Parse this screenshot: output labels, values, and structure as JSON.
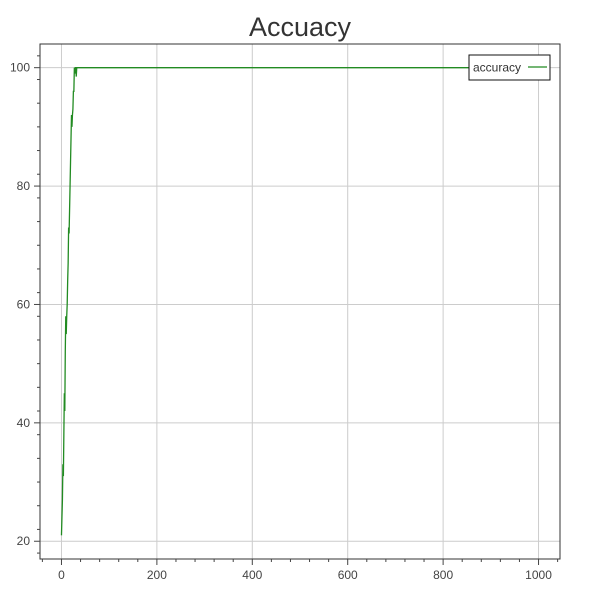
{
  "chart_data": {
    "type": "line",
    "title": "Accuacy",
    "xlabel": "",
    "ylabel": "",
    "xlim": [
      -45,
      1045
    ],
    "ylim": [
      17,
      104
    ],
    "x_ticks": [
      0,
      200,
      400,
      600,
      800,
      1000
    ],
    "y_ticks": [
      20,
      40,
      60,
      80,
      100
    ],
    "grid": true,
    "legend_position": "top-right",
    "series": [
      {
        "name": "accuracy",
        "color": "#228b22",
        "x": [
          0,
          1,
          2,
          3,
          4,
          5,
          6,
          7,
          8,
          9,
          10,
          11,
          12,
          13,
          14,
          15,
          16,
          17,
          18,
          19,
          20,
          21,
          22,
          23,
          24,
          25,
          26,
          27,
          28,
          29,
          30,
          31,
          32,
          33,
          34,
          35,
          36,
          37,
          38,
          39,
          40,
          45,
          50,
          60,
          80,
          100,
          200,
          300,
          400,
          500,
          600,
          700,
          800,
          900,
          1000
        ],
        "y": [
          21,
          24,
          27,
          33,
          31,
          38,
          45,
          42,
          52,
          58,
          55,
          58,
          60,
          64,
          67,
          73,
          72,
          76,
          80,
          84,
          88,
          92,
          90,
          92,
          93,
          96,
          96,
          100,
          99,
          100,
          100,
          98.5,
          100,
          100,
          100,
          100,
          100,
          100,
          100,
          100,
          100,
          100,
          100,
          100,
          100,
          100,
          100,
          100,
          100,
          100,
          100,
          100,
          100,
          100,
          100
        ]
      }
    ]
  }
}
